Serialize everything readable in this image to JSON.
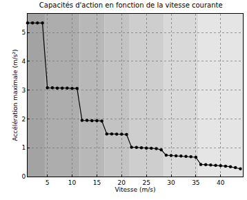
{
  "chart_data": {
    "type": "line",
    "title": "Capacités d'action en fonction de la vitesse courante",
    "x_label": "Vitesse (m/s)",
    "y_label": "Accélération maximale (m/s²)",
    "x": [
      1,
      2,
      3,
      4,
      5,
      6,
      7,
      8,
      9,
      10,
      11,
      12,
      13,
      14,
      15,
      16,
      17,
      18,
      19,
      20,
      21,
      22,
      23,
      24,
      25,
      26,
      27,
      28,
      29,
      30,
      31,
      32,
      33,
      34,
      35,
      36,
      37,
      38,
      39,
      40,
      41,
      42,
      43,
      44
    ],
    "values": [
      5.33,
      5.33,
      5.33,
      5.33,
      3.08,
      3.08,
      3.07,
      3.07,
      3.07,
      3.06,
      3.06,
      1.95,
      1.95,
      1.94,
      1.94,
      1.93,
      1.48,
      1.48,
      1.47,
      1.47,
      1.46,
      1.02,
      1.01,
      1.0,
      0.99,
      0.98,
      0.97,
      0.93,
      0.74,
      0.73,
      0.72,
      0.71,
      0.7,
      0.69,
      0.67,
      0.42,
      0.41,
      0.4,
      0.39,
      0.38,
      0.36,
      0.34,
      0.31,
      0.27
    ],
    "color": "#000000",
    "marker": "circle",
    "line_style": "solid",
    "xlim": [
      1,
      44.5
    ],
    "xticks": [
      5,
      10,
      15,
      20,
      25,
      30,
      35,
      40
    ],
    "ylim": [
      0,
      5.65
    ],
    "yticks": [
      0,
      1,
      2,
      3,
      4,
      5
    ],
    "grid": true,
    "bands": [
      {
        "from": 1,
        "to": 4.5,
        "color": "#a3a3a3"
      },
      {
        "from": 4.5,
        "to": 11.5,
        "color": "#adadad"
      },
      {
        "from": 11.5,
        "to": 16.5,
        "color": "#b8b8b8"
      },
      {
        "from": 16.5,
        "to": 21.5,
        "color": "#c3c3c3"
      },
      {
        "from": 21.5,
        "to": 28.5,
        "color": "#cecece"
      },
      {
        "from": 28.5,
        "to": 35.5,
        "color": "#d9d9d9"
      },
      {
        "from": 35.5,
        "to": 44.5,
        "color": "#e5e5e5"
      }
    ]
  }
}
